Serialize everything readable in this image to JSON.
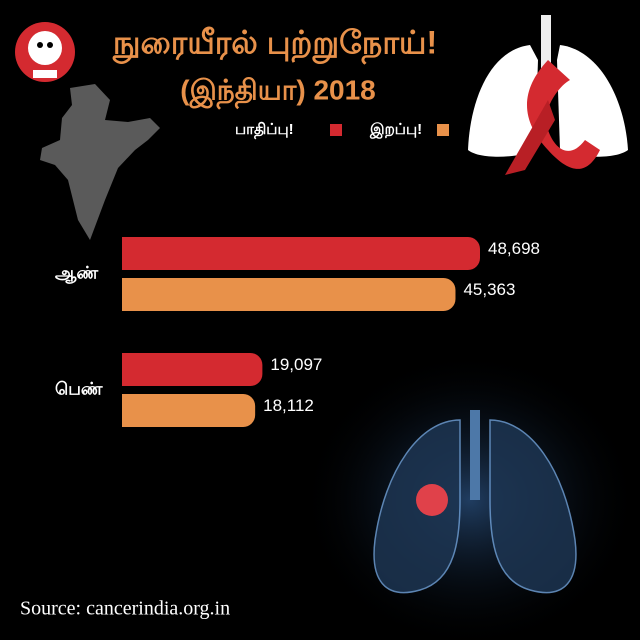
{
  "chart_data": {
    "type": "hbar",
    "title": "நுரையீரல் புற்றுநோய்!",
    "subtitle": "(இந்தியா) 2018",
    "categories": [
      "ஆண்",
      "பெண்"
    ],
    "series": [
      {
        "name": "பாதிப்பு!",
        "color": "#d42a30",
        "values": [
          48698,
          19097
        ],
        "value_labels": [
          "48,698",
          "19,097"
        ]
      },
      {
        "name": "இறப்பு!",
        "color": "#e8914a",
        "values": [
          45363,
          18112
        ],
        "value_labels": [
          "45,363",
          "18,112"
        ]
      }
    ],
    "source": "Source: cancerindia.org.in"
  }
}
